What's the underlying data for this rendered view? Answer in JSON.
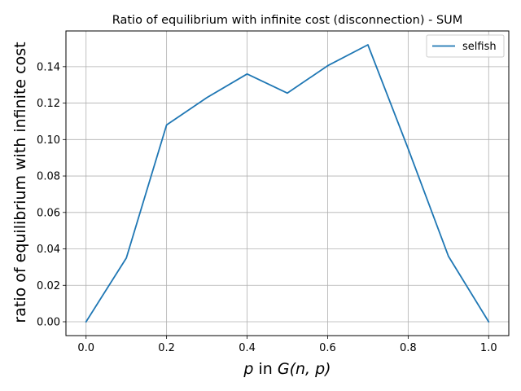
{
  "chart_data": {
    "type": "line",
    "title": "Ratio of equilibrium with infinite cost (disconnection) - SUM",
    "xlabel": {
      "pre": "p",
      "mid": " in ",
      "post": "G(n, p)"
    },
    "ylabel": "ratio of equilibrium with infinite cost",
    "xlim": [
      -0.05,
      1.05
    ],
    "ylim": [
      -0.0076,
      0.1596
    ],
    "xticks": [
      0.0,
      0.2,
      0.4,
      0.6,
      0.8,
      1.0
    ],
    "xtick_labels": [
      "0.0",
      "0.2",
      "0.4",
      "0.6",
      "0.8",
      "1.0"
    ],
    "yticks": [
      0.0,
      0.02,
      0.04,
      0.06,
      0.08,
      0.1,
      0.12,
      0.14
    ],
    "ytick_labels": [
      "0.00",
      "0.02",
      "0.04",
      "0.06",
      "0.08",
      "0.10",
      "0.12",
      "0.14"
    ],
    "grid": true,
    "legend_position": "top-right",
    "series": [
      {
        "name": "selfish",
        "color": "#1f77b4",
        "x": [
          0.0,
          0.1,
          0.2,
          0.3,
          0.4,
          0.5,
          0.6,
          0.7,
          0.8,
          0.9,
          1.0
        ],
        "y": [
          0.0,
          0.035,
          0.108,
          0.123,
          0.136,
          0.1255,
          0.1405,
          0.152,
          0.095,
          0.036,
          0.0
        ]
      }
    ]
  }
}
